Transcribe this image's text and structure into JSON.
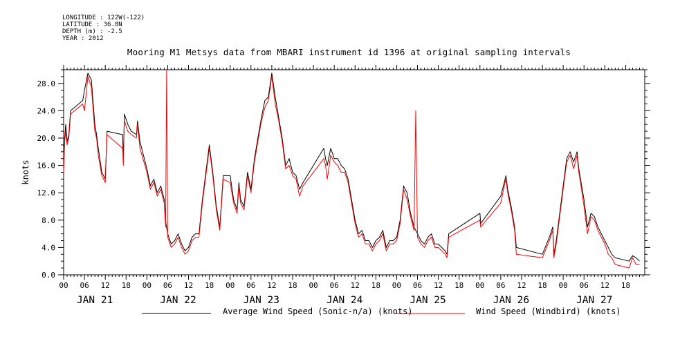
{
  "header": {
    "longitude": "LONGITUDE : 122W(-122)",
    "latitude": "LATITUDE : 36.8N",
    "depth": "DEPTH (m) : -2.5",
    "year": "YEAR : 2012"
  },
  "chart_data": {
    "type": "line",
    "title": "Mooring M1 Metsys data from MBARI instrument id 1396 at original sampling intervals",
    "ylabel": "knots",
    "xlabel": "",
    "ylim": [
      0,
      30
    ],
    "xlim": [
      0,
      166
    ],
    "x_unit": "hours since JAN 21 00",
    "yticks": [
      "0.0",
      "4.0",
      "8.0",
      "12.0",
      "16.0",
      "20.0",
      "24.0",
      "28.0"
    ],
    "hour_tick_labels": [
      "00",
      "06",
      "12",
      "18"
    ],
    "day_labels": [
      "JAN 21",
      "JAN 22",
      "JAN 23",
      "JAN 24",
      "JAN 25",
      "JAN 26",
      "JAN 27"
    ],
    "grid": false,
    "legend": "bottom",
    "series": [
      {
        "name": "Average Wind Speed (Sonic-n/a) (knots)",
        "color": "#000000",
        "points": [
          [
            0,
            15.5
          ],
          [
            0.3,
            20
          ],
          [
            0.6,
            22
          ],
          [
            1,
            19.5
          ],
          [
            1.5,
            20.5
          ],
          [
            2,
            24
          ],
          [
            5.5,
            25.5
          ],
          [
            6,
            27
          ],
          [
            7,
            29.5
          ],
          [
            8,
            28.5
          ],
          [
            9,
            22
          ],
          [
            9.5,
            20.5
          ],
          [
            10,
            18.5
          ],
          [
            11,
            15
          ],
          [
            12,
            14
          ],
          [
            12.5,
            21
          ],
          [
            17,
            20.5
          ],
          [
            17.2,
            17
          ],
          [
            17.5,
            23.5
          ],
          [
            18.5,
            22
          ],
          [
            19.5,
            21
          ],
          [
            21,
            20.5
          ],
          [
            21.3,
            22.5
          ],
          [
            22,
            19.5
          ],
          [
            24,
            15.5
          ],
          [
            25,
            13
          ],
          [
            26,
            14
          ],
          [
            27,
            12
          ],
          [
            28,
            13
          ],
          [
            29,
            11
          ],
          [
            29.5,
            7.5
          ],
          [
            30,
            6
          ],
          [
            31,
            4.5
          ],
          [
            32,
            5
          ],
          [
            33,
            6
          ],
          [
            34,
            4.5
          ],
          [
            35,
            3.5
          ],
          [
            36,
            4
          ],
          [
            37,
            5.5
          ],
          [
            38,
            6
          ],
          [
            39,
            6
          ],
          [
            40,
            11
          ],
          [
            41,
            15
          ],
          [
            42,
            19
          ],
          [
            43,
            15
          ],
          [
            44,
            10
          ],
          [
            45,
            7
          ],
          [
            46,
            14.5
          ],
          [
            48,
            14.5
          ],
          [
            49,
            11
          ],
          [
            50,
            9.5
          ],
          [
            50.5,
            13.5
          ],
          [
            51,
            11
          ],
          [
            52,
            10
          ],
          [
            53,
            15
          ],
          [
            54,
            12.5
          ],
          [
            55,
            17
          ],
          [
            56,
            20
          ],
          [
            57,
            23
          ],
          [
            58,
            25.5
          ],
          [
            59,
            26
          ],
          [
            60,
            29.5
          ],
          [
            61,
            26
          ],
          [
            62,
            23
          ],
          [
            63,
            20
          ],
          [
            64,
            16
          ],
          [
            65,
            17
          ],
          [
            66,
            15
          ],
          [
            67,
            14.5
          ],
          [
            68,
            12.5
          ],
          [
            69,
            13.5
          ],
          [
            75,
            18.5
          ],
          [
            75.5,
            17
          ],
          [
            76,
            16
          ],
          [
            77,
            18.5
          ],
          [
            78,
            17
          ],
          [
            79,
            17
          ],
          [
            80,
            16
          ],
          [
            81,
            15.5
          ],
          [
            82,
            14
          ],
          [
            83,
            11
          ],
          [
            84,
            8
          ],
          [
            85,
            6
          ],
          [
            86,
            6.5
          ],
          [
            87,
            5
          ],
          [
            88,
            5
          ],
          [
            89,
            4
          ],
          [
            90,
            5
          ],
          [
            91,
            5.5
          ],
          [
            92,
            6.5
          ],
          [
            93,
            4
          ],
          [
            94,
            5
          ],
          [
            95,
            5
          ],
          [
            96,
            5.5
          ],
          [
            97,
            8
          ],
          [
            98,
            13
          ],
          [
            99,
            12
          ],
          [
            100,
            9
          ],
          [
            101,
            7
          ],
          [
            102,
            6
          ],
          [
            103,
            5
          ],
          [
            104,
            4.5
          ],
          [
            105,
            5.5
          ],
          [
            106,
            6
          ],
          [
            107,
            4.5
          ],
          [
            108,
            4.5
          ],
          [
            109,
            4
          ],
          [
            110,
            3.5
          ],
          [
            110.5,
            3
          ],
          [
            111,
            6
          ],
          [
            120,
            9
          ],
          [
            120.2,
            7.5
          ],
          [
            126,
            11.5
          ],
          [
            127,
            13.5
          ],
          [
            127.5,
            14.5
          ],
          [
            128,
            12.5
          ],
          [
            129,
            10
          ],
          [
            130,
            7
          ],
          [
            130.5,
            4
          ],
          [
            138,
            3
          ],
          [
            140,
            5.5
          ],
          [
            141,
            7
          ],
          [
            141.3,
            3
          ],
          [
            142,
            5
          ],
          [
            143,
            9
          ],
          [
            144,
            13
          ],
          [
            145,
            17
          ],
          [
            146,
            18
          ],
          [
            147,
            16.5
          ],
          [
            148,
            18
          ],
          [
            148.5,
            15.5
          ],
          [
            149,
            14
          ],
          [
            150,
            11
          ],
          [
            151,
            7
          ],
          [
            152,
            9
          ],
          [
            153,
            8.5
          ],
          [
            154,
            7
          ],
          [
            155,
            6
          ],
          [
            156,
            5
          ],
          [
            157,
            4
          ],
          [
            158,
            3
          ],
          [
            159,
            2.5
          ],
          [
            163,
            2
          ],
          [
            164,
            2.8
          ],
          [
            165,
            2.5
          ],
          [
            166,
            2
          ]
        ]
      },
      {
        "name": "Wind Speed (Windbird) (knots)",
        "color": "#ff0000",
        "points": [
          [
            0,
            15
          ],
          [
            0.3,
            19.5
          ],
          [
            0.6,
            21
          ],
          [
            1,
            19
          ],
          [
            1.5,
            20
          ],
          [
            2,
            23.5
          ],
          [
            5.5,
            25
          ],
          [
            6,
            24
          ],
          [
            7,
            29
          ],
          [
            8,
            27.5
          ],
          [
            9,
            21
          ],
          [
            9.5,
            20
          ],
          [
            10,
            17.5
          ],
          [
            11,
            14.5
          ],
          [
            12,
            13.5
          ],
          [
            12.5,
            20.5
          ],
          [
            17,
            18.5
          ],
          [
            17.2,
            16
          ],
          [
            17.5,
            22.5
          ],
          [
            18.5,
            21
          ],
          [
            19.5,
            20.5
          ],
          [
            21,
            20
          ],
          [
            21.3,
            22
          ],
          [
            22,
            18.5
          ],
          [
            24,
            15
          ],
          [
            25,
            12.5
          ],
          [
            26,
            13.5
          ],
          [
            27,
            11.5
          ],
          [
            28,
            12.5
          ],
          [
            29,
            10.5
          ],
          [
            29.4,
            7
          ],
          [
            29.7,
            30
          ],
          [
            30,
            5.5
          ],
          [
            31,
            4
          ],
          [
            32,
            4.5
          ],
          [
            33,
            5.5
          ],
          [
            34,
            4
          ],
          [
            35,
            3
          ],
          [
            36,
            3.5
          ],
          [
            37,
            5
          ],
          [
            38,
            5.5
          ],
          [
            39,
            5.5
          ],
          [
            40,
            10.5
          ],
          [
            41,
            14.5
          ],
          [
            42,
            18.5
          ],
          [
            43,
            14.5
          ],
          [
            44,
            9.5
          ],
          [
            45,
            6.5
          ],
          [
            46,
            14
          ],
          [
            48,
            13.5
          ],
          [
            49,
            10.5
          ],
          [
            50,
            9
          ],
          [
            50.5,
            13
          ],
          [
            51,
            10.5
          ],
          [
            52,
            9.5
          ],
          [
            53,
            14.5
          ],
          [
            54,
            12
          ],
          [
            55,
            16.5
          ],
          [
            56,
            19.5
          ],
          [
            57,
            22.5
          ],
          [
            58,
            24.5
          ],
          [
            59,
            25.5
          ],
          [
            60,
            29
          ],
          [
            61,
            25
          ],
          [
            62,
            22.5
          ],
          [
            63,
            19.5
          ],
          [
            64,
            15.5
          ],
          [
            65,
            16
          ],
          [
            66,
            14.5
          ],
          [
            67,
            14
          ],
          [
            68,
            11.5
          ],
          [
            69,
            13
          ],
          [
            75,
            17
          ],
          [
            75.5,
            16
          ],
          [
            76,
            14
          ],
          [
            77,
            17.5
          ],
          [
            78,
            16.5
          ],
          [
            79,
            16
          ],
          [
            80,
            15
          ],
          [
            81,
            15
          ],
          [
            82,
            13.5
          ],
          [
            83,
            10.5
          ],
          [
            84,
            7.5
          ],
          [
            85,
            5.5
          ],
          [
            86,
            6
          ],
          [
            87,
            4.5
          ],
          [
            88,
            4.5
          ],
          [
            89,
            3.5
          ],
          [
            90,
            4.5
          ],
          [
            91,
            5
          ],
          [
            92,
            6
          ],
          [
            93,
            3.5
          ],
          [
            94,
            4.5
          ],
          [
            95,
            4.5
          ],
          [
            96,
            5
          ],
          [
            97,
            7.5
          ],
          [
            98,
            12.5
          ],
          [
            99,
            11
          ],
          [
            100,
            8.5
          ],
          [
            101,
            6.5
          ],
          [
            101.5,
            24
          ],
          [
            102,
            5.5
          ],
          [
            103,
            4.5
          ],
          [
            104,
            4
          ],
          [
            105,
            5
          ],
          [
            106,
            5.5
          ],
          [
            107,
            4
          ],
          [
            108,
            4
          ],
          [
            109,
            3.5
          ],
          [
            110,
            3
          ],
          [
            110.5,
            2.5
          ],
          [
            111,
            5.5
          ],
          [
            120,
            8
          ],
          [
            120.2,
            7
          ],
          [
            126,
            10.5
          ],
          [
            127,
            13
          ],
          [
            127.5,
            14
          ],
          [
            128,
            12
          ],
          [
            129,
            9.5
          ],
          [
            130,
            6.5
          ],
          [
            130.5,
            3
          ],
          [
            138,
            2.5
          ],
          [
            140,
            5
          ],
          [
            141,
            6.5
          ],
          [
            141.3,
            2.5
          ],
          [
            142,
            4.5
          ],
          [
            143,
            8.5
          ],
          [
            144,
            12.5
          ],
          [
            145,
            16.5
          ],
          [
            146,
            17.5
          ],
          [
            147,
            15.5
          ],
          [
            148,
            17.5
          ],
          [
            148.5,
            15
          ],
          [
            149,
            13.5
          ],
          [
            150,
            10
          ],
          [
            151,
            6
          ],
          [
            152,
            8.5
          ],
          [
            153,
            8
          ],
          [
            154,
            6.5
          ],
          [
            155,
            5.5
          ],
          [
            156,
            4.5
          ],
          [
            157,
            3
          ],
          [
            158,
            2.5
          ],
          [
            159,
            1.5
          ],
          [
            163,
            1
          ],
          [
            164,
            2.5
          ],
          [
            165,
            1.5
          ],
          [
            166,
            1.5
          ]
        ]
      }
    ]
  },
  "legend": {
    "avg_label": "Average Wind Speed (Sonic-n/a) (knots)",
    "windbird_label": "Wind Speed (Windbird) (knots)"
  },
  "colors": {
    "avg": "#000000",
    "windbird": "#ff0000"
  }
}
